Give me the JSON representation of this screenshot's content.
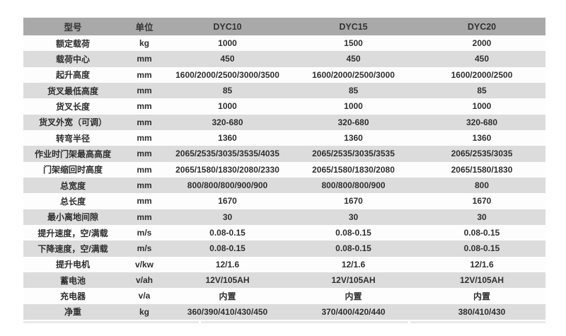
{
  "table": {
    "columns": [
      "型号",
      "单位",
      "DYC10",
      "DYC15",
      "DYC20"
    ],
    "rows": [
      {
        "label": "额定载荷",
        "unit": "kg",
        "dyc10": "1000",
        "dyc15": "1500",
        "dyc20": "2000"
      },
      {
        "label": "载荷中心",
        "unit": "mm",
        "dyc10": "450",
        "dyc15": "450",
        "dyc20": "450"
      },
      {
        "label": "起升高度",
        "unit": "mm",
        "dyc10": "1600/2000/2500/3000/3500",
        "dyc15": "1600/2000/2500/3000",
        "dyc20": "1600/2000/2500"
      },
      {
        "label": "货叉最低高度",
        "unit": "mm",
        "dyc10": "85",
        "dyc15": "85",
        "dyc20": "85"
      },
      {
        "label": "货叉长度",
        "unit": "mm",
        "dyc10": "1000",
        "dyc15": "1000",
        "dyc20": "1000"
      },
      {
        "label": "货叉外宽（可调）",
        "unit": "mm",
        "dyc10": "320-680",
        "dyc15": "320-680",
        "dyc20": "320-680"
      },
      {
        "label": "转弯半径",
        "unit": "mm",
        "dyc10": "1360",
        "dyc15": "1360",
        "dyc20": "1360"
      },
      {
        "label": "作业时门架最高高度",
        "unit": "mm",
        "dyc10": "2065/2535/3035/3535/4035",
        "dyc15": "2065/2535/3035/3535",
        "dyc20": "2065/2535/3035"
      },
      {
        "label": "门架缩回时高度",
        "unit": "mm",
        "dyc10": "2065/1580/1830/2080/2330",
        "dyc15": "2065/1580/1830/2080",
        "dyc20": "2065/1580/1830"
      },
      {
        "label": "总宽度",
        "unit": "mm",
        "dyc10": "800/800/800/900/900",
        "dyc15": "800/800/800/900",
        "dyc20": "800"
      },
      {
        "label": "总长度",
        "unit": "mm",
        "dyc10": "1670",
        "dyc15": "1670",
        "dyc20": "1670"
      },
      {
        "label": "最小离地间隙",
        "unit": "mm",
        "dyc10": "30",
        "dyc15": "30",
        "dyc20": "30"
      },
      {
        "label": "提升速度，空/满载",
        "unit": "m/s",
        "dyc10": "0.08-0.15",
        "dyc15": "0.08-0.15",
        "dyc20": "0.08-0.15"
      },
      {
        "label": "下降速度，空/满载",
        "unit": "m/s",
        "dyc10": "0.08-0.15",
        "dyc15": "0.08-0.15",
        "dyc20": "0.08-0.15"
      },
      {
        "label": "提升电机",
        "unit": "v/kw",
        "dyc10": "12/1.6",
        "dyc15": "12/1.6",
        "dyc20": "12/1.6"
      },
      {
        "label": "蓄电池",
        "unit": "v/ah",
        "dyc10": "12V/105AH",
        "dyc15": "12V/105AH",
        "dyc20": "12V/105AH"
      },
      {
        "label": "充电器",
        "unit": "v/a",
        "dyc10": "内置",
        "dyc15": "内置",
        "dyc20": "内置"
      },
      {
        "label": "净重",
        "unit": "kg",
        "dyc10": "360/390/410/430/450",
        "dyc15": "370/400/420/440",
        "dyc20": "380/410/430"
      }
    ],
    "colors": {
      "header_bg": "#a9a9a9",
      "row_alt_bg": "#dcdcdc",
      "row_bg": "#fdfdfd",
      "text": "#2f2f2f"
    }
  }
}
